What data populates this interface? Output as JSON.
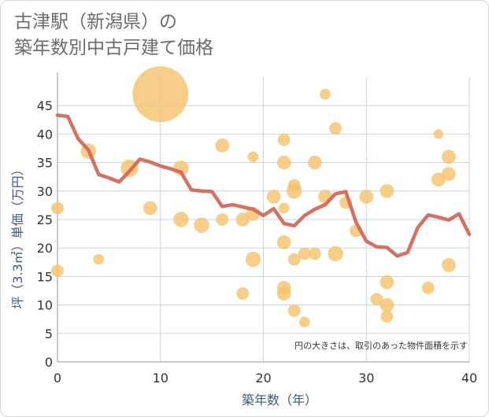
{
  "header": {
    "title_line1": "古津駅（新潟県）の",
    "title_line2": "築年数別中古戸建て価格"
  },
  "chart_data": {
    "type": "scatter",
    "title": "古津駅（新潟県）の 築年数別中古戸建て価格",
    "xlabel": "築年数（年）",
    "ylabel": "坪（3.3㎡）単価（万円）",
    "xlim": [
      0,
      40
    ],
    "ylim": [
      0,
      50
    ],
    "x_ticks": [
      0,
      10,
      20,
      30,
      40
    ],
    "y_ticks": [
      0,
      5,
      10,
      15,
      20,
      25,
      30,
      35,
      40,
      45
    ],
    "grid": true,
    "annotation": "円の大きさは、取引のあった物件面積を示す",
    "colors": {
      "bubble": "#f5c26b",
      "line": "#d2695a",
      "grid": "#c5d5e5"
    },
    "series": [
      {
        "type": "bubble",
        "points": [
          {
            "x": 0,
            "y": 27,
            "s": 2
          },
          {
            "x": 0,
            "y": 16,
            "s": 2
          },
          {
            "x": 3,
            "y": 37,
            "s": 3
          },
          {
            "x": 4,
            "y": 18,
            "s": 1.5
          },
          {
            "x": 7,
            "y": 34,
            "s": 4
          },
          {
            "x": 9,
            "y": 27,
            "s": 2.5
          },
          {
            "x": 10,
            "y": 47,
            "s": 40
          },
          {
            "x": 12,
            "y": 34,
            "s": 3
          },
          {
            "x": 12,
            "y": 25,
            "s": 3
          },
          {
            "x": 14,
            "y": 24,
            "s": 3
          },
          {
            "x": 16,
            "y": 38,
            "s": 2.5
          },
          {
            "x": 16,
            "y": 25,
            "s": 2
          },
          {
            "x": 18,
            "y": 25,
            "s": 2.5
          },
          {
            "x": 18,
            "y": 12,
            "s": 2
          },
          {
            "x": 19,
            "y": 36,
            "s": 1.5
          },
          {
            "x": 19,
            "y": 26,
            "s": 2.5
          },
          {
            "x": 19,
            "y": 18,
            "s": 3
          },
          {
            "x": 21,
            "y": 29,
            "s": 2.5
          },
          {
            "x": 22,
            "y": 39,
            "s": 2
          },
          {
            "x": 22,
            "y": 35,
            "s": 2.5
          },
          {
            "x": 22,
            "y": 27,
            "s": 1.5
          },
          {
            "x": 22,
            "y": 21,
            "s": 2.5
          },
          {
            "x": 22,
            "y": 13,
            "s": 2.5
          },
          {
            "x": 22,
            "y": 12,
            "s": 2.5
          },
          {
            "x": 23,
            "y": 31,
            "s": 2
          },
          {
            "x": 23,
            "y": 30,
            "s": 3
          },
          {
            "x": 23,
            "y": 18,
            "s": 2
          },
          {
            "x": 23,
            "y": 9,
            "s": 2
          },
          {
            "x": 24,
            "y": 19,
            "s": 2
          },
          {
            "x": 24,
            "y": 7,
            "s": 1.5
          },
          {
            "x": 25,
            "y": 35,
            "s": 2.5
          },
          {
            "x": 25,
            "y": 19,
            "s": 2
          },
          {
            "x": 26,
            "y": 47,
            "s": 1.5
          },
          {
            "x": 26,
            "y": 29,
            "s": 2.5
          },
          {
            "x": 27,
            "y": 41,
            "s": 2
          },
          {
            "x": 27,
            "y": 19,
            "s": 3
          },
          {
            "x": 28,
            "y": 28,
            "s": 2
          },
          {
            "x": 29,
            "y": 23,
            "s": 2
          },
          {
            "x": 30,
            "y": 29,
            "s": 2.5
          },
          {
            "x": 31,
            "y": 11,
            "s": 2
          },
          {
            "x": 32,
            "y": 30,
            "s": 2.5
          },
          {
            "x": 32,
            "y": 14,
            "s": 2.5
          },
          {
            "x": 32,
            "y": 10,
            "s": 2.5
          },
          {
            "x": 32,
            "y": 8,
            "s": 2
          },
          {
            "x": 36,
            "y": 13,
            "s": 2
          },
          {
            "x": 37,
            "y": 40,
            "s": 1.2
          },
          {
            "x": 37,
            "y": 32,
            "s": 2.5
          },
          {
            "x": 38,
            "y": 36,
            "s": 2.5
          },
          {
            "x": 38,
            "y": 33,
            "s": 2.5
          },
          {
            "x": 38,
            "y": 17,
            "s": 2.5
          }
        ]
      },
      {
        "type": "line",
        "x": [
          0,
          1,
          2,
          3,
          4,
          5,
          6,
          7,
          8,
          9,
          10,
          11,
          12,
          13,
          14,
          15,
          16,
          17,
          18,
          19,
          20,
          21,
          22,
          23,
          24,
          25,
          26,
          27,
          28,
          29,
          30,
          31,
          32,
          33,
          34,
          35,
          36,
          37,
          38,
          39,
          40
        ],
        "y": [
          43.3,
          43.1,
          39.2,
          37.2,
          32.9,
          32.3,
          31.6,
          33.5,
          35.6,
          35.1,
          34.4,
          33.9,
          33.3,
          30.2,
          30.0,
          29.9,
          27.3,
          27.6,
          27.2,
          26.8,
          25.7,
          26.9,
          24.3,
          23.9,
          25.7,
          26.8,
          27.6,
          29.5,
          29.9,
          24.5,
          21.2,
          20.2,
          20.1,
          18.6,
          19.2,
          23.6,
          25.8,
          25.4,
          24.9,
          26.0,
          22.4
        ]
      }
    ]
  }
}
